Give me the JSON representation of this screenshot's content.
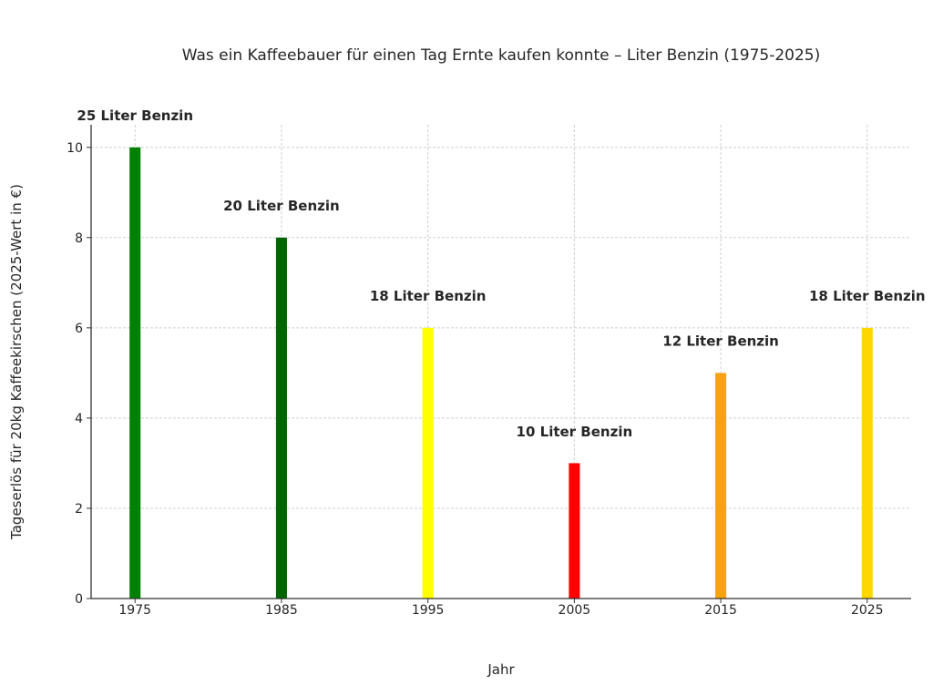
{
  "chart_data": {
    "type": "bar",
    "title": "Was ein Kaffeebauer für einen Tag Ernte kaufen konnte – Liter Benzin (1975-2025)",
    "xlabel": "Jahr",
    "ylabel": "Tageserlös für 20kg Kaffeekirschen (2025-Wert in €)",
    "categories": [
      "1975",
      "1985",
      "1995",
      "2005",
      "2015",
      "2025"
    ],
    "x": [
      1975,
      1985,
      1995,
      2005,
      2015,
      2025
    ],
    "values": [
      10,
      8,
      6,
      3,
      5,
      6
    ],
    "annotations": [
      "25 Liter Benzin",
      "20 Liter Benzin",
      "18 Liter Benzin",
      "10 Liter Benzin",
      "12 Liter Benzin",
      "18 Liter Benzin"
    ],
    "colors": [
      "#008000",
      "#006400",
      "#ffff00",
      "#ff0000",
      "#f5a314",
      "#ffd700"
    ],
    "xlim": [
      1972,
      2028
    ],
    "ylim": [
      0,
      10.5
    ],
    "yticks": [
      0,
      2,
      4,
      6,
      8,
      10
    ],
    "xticks": [
      1975,
      1985,
      1995,
      2005,
      2015,
      2025
    ],
    "grid": true,
    "legend": "none"
  }
}
